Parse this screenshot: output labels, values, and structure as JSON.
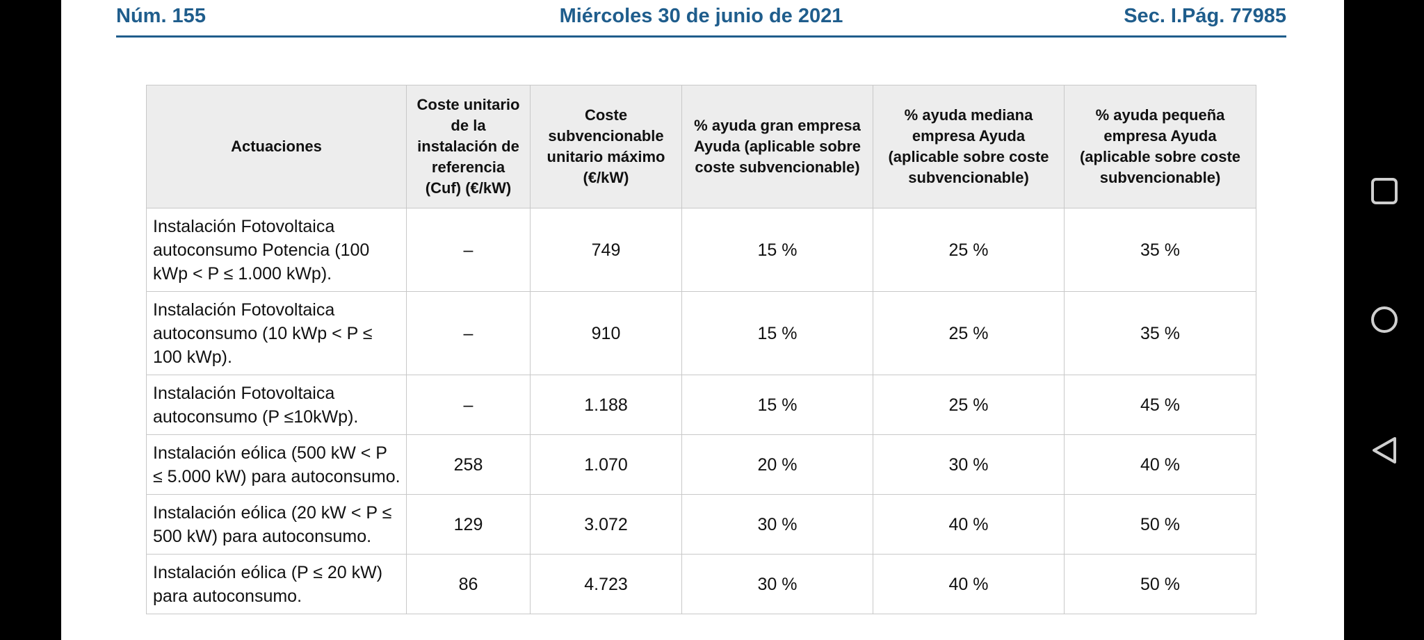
{
  "header": {
    "issue": "Núm. 155",
    "date": "Miércoles 30 de junio de 2021",
    "section": "Sec. I.",
    "page": "Pág. 77985"
  },
  "table": {
    "columns": [
      "Actuaciones",
      "Coste unitario de la instalación de referencia (Cuf) (€/kW)",
      "Coste subvencionable unitario máximo (€/kW)",
      "% ayuda gran empresa Ayuda (aplicable sobre coste subvencionable)",
      "% ayuda mediana empresa Ayuda (aplicable sobre coste subvencionable)",
      "% ayuda pequeña empresa Ayuda (aplicable sobre coste subvencionable)"
    ],
    "rows": [
      {
        "actuacion": "Instalación Fotovoltaica autoconsumo Potencia (100 kWp < P ≤ 1.000 kWp).",
        "coste_ref": "–",
        "coste_max": "749",
        "gran": "15 %",
        "mediana": "25 %",
        "pequena": "35 %"
      },
      {
        "actuacion": "Instalación Fotovoltaica autoconsumo (10 kWp < P ≤ 100 kWp).",
        "coste_ref": "–",
        "coste_max": "910",
        "gran": "15 %",
        "mediana": "25 %",
        "pequena": "35 %"
      },
      {
        "actuacion": "Instalación Fotovoltaica autoconsumo (P ≤10kWp).",
        "coste_ref": "–",
        "coste_max": "1.188",
        "gran": "15 %",
        "mediana": "25 %",
        "pequena": "45 %"
      },
      {
        "actuacion": "Instalación eólica (500 kW < P ≤ 5.000 kW) para autoconsumo.",
        "coste_ref": "258",
        "coste_max": "1.070",
        "gran": "20 %",
        "mediana": "30 %",
        "pequena": "40 %"
      },
      {
        "actuacion": "Instalación eólica (20 kW < P ≤ 500 kW) para autoconsumo.",
        "coste_ref": "129",
        "coste_max": "3.072",
        "gran": "30 %",
        "mediana": "40 %",
        "pequena": "50 %"
      },
      {
        "actuacion": "Instalación eólica (P ≤ 20 kW) para autoconsumo.",
        "coste_ref": "86",
        "coste_max": "4.723",
        "gran": "30 %",
        "mediana": "40 %",
        "pequena": "50 %"
      }
    ]
  },
  "navbar": {
    "buttons": [
      "recents-square-icon",
      "home-circle-icon",
      "back-triangle-icon"
    ]
  },
  "colors": {
    "header_blue": "#1f5d8c",
    "table_header_bg": "#ededed",
    "border": "#c8c8c8",
    "nav_icon": "#cfcfcf"
  }
}
